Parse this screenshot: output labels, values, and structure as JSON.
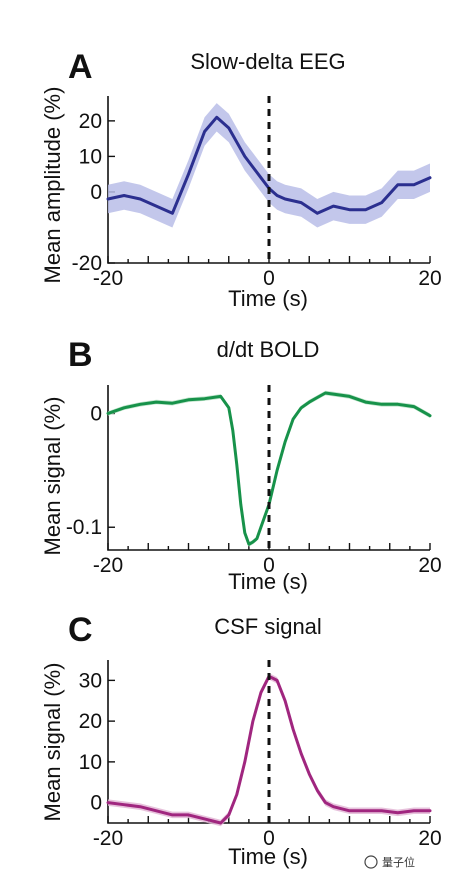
{
  "watermark": "量子位",
  "chart_data": [
    {
      "type": "line",
      "panel_letter": "A",
      "title": "Slow-delta EEG",
      "xlabel": "Time (s)",
      "ylabel": "Mean amplitude (%)",
      "xlim": [
        -20,
        20
      ],
      "ylim": [
        -20,
        27
      ],
      "xticks": [
        -20,
        0,
        20
      ],
      "yticks": [
        20,
        10,
        0,
        -20
      ],
      "ytick_labels": [
        "20",
        "10",
        "0",
        "-20"
      ],
      "vline_x": 0,
      "colors": {
        "line": "#2b2f8f",
        "band": "#b9bde8"
      },
      "x": [
        -20,
        -18,
        -16,
        -14,
        -12,
        -10,
        -8,
        -6.5,
        -5,
        -4,
        -3,
        -2,
        -1,
        0,
        1,
        2,
        4,
        6,
        8,
        10,
        12,
        14,
        16,
        18,
        20
      ],
      "y": [
        -2,
        -1,
        -2,
        -4,
        -6,
        5,
        17,
        21,
        18,
        14,
        10,
        7,
        4,
        1,
        -1,
        -2,
        -3,
        -6,
        -4,
        -5,
        -5,
        -3,
        2,
        2,
        4
      ],
      "band_halfwidth": 4
    },
    {
      "type": "line",
      "panel_letter": "B",
      "title": "d/dt BOLD",
      "xlabel": "Time (s)",
      "ylabel": "Mean signal (%)",
      "xlim": [
        -20,
        20
      ],
      "ylim": [
        -0.12,
        0.025
      ],
      "xticks": [
        -20,
        0,
        20
      ],
      "yticks": [
        0,
        -0.1
      ],
      "ytick_labels": [
        "0",
        "-0.1"
      ],
      "vline_x": 0,
      "colors": {
        "line": "#17924a",
        "band": "#b6e0c3"
      },
      "x": [
        -20,
        -18,
        -16,
        -14,
        -12,
        -10,
        -8,
        -6,
        -5,
        -4.5,
        -4,
        -3.5,
        -3,
        -2.5,
        -2,
        -1.5,
        -1,
        0,
        1,
        2,
        3,
        4,
        5,
        6,
        7,
        8,
        10,
        12,
        14,
        16,
        18,
        20
      ],
      "y": [
        0.0,
        0.005,
        0.008,
        0.01,
        0.009,
        0.012,
        0.013,
        0.015,
        0.005,
        -0.015,
        -0.045,
        -0.08,
        -0.105,
        -0.115,
        -0.113,
        -0.11,
        -0.1,
        -0.08,
        -0.05,
        -0.025,
        -0.005,
        0.005,
        0.01,
        0.014,
        0.018,
        0.017,
        0.015,
        0.01,
        0.008,
        0.008,
        0.006,
        -0.002
      ],
      "band_halfwidth": 0.002
    },
    {
      "type": "line",
      "panel_letter": "C",
      "title": "CSF signal",
      "xlabel": "Time (s)",
      "ylabel": "Mean signal (%)",
      "xlim": [
        -20,
        20
      ],
      "ylim": [
        -5,
        35
      ],
      "xticks": [
        -20,
        0,
        20
      ],
      "yticks": [
        30,
        20,
        10,
        0
      ],
      "ytick_labels": [
        "30",
        "20",
        "10",
        "0"
      ],
      "vline_x": 0,
      "colors": {
        "line": "#a0267f",
        "band": "#e3b7d6"
      },
      "x": [
        -20,
        -18,
        -16,
        -14,
        -12,
        -10,
        -8,
        -6,
        -5,
        -4,
        -3,
        -2,
        -1,
        0,
        1,
        2,
        3,
        4,
        5,
        6,
        7,
        8,
        10,
        12,
        14,
        16,
        18,
        20
      ],
      "y": [
        0,
        -0.5,
        -1,
        -2,
        -3,
        -3,
        -4,
        -5,
        -3,
        2,
        10,
        20,
        27,
        31,
        30,
        25,
        18,
        12,
        7,
        3,
        0,
        -1,
        -2,
        -2,
        -2,
        -2.5,
        -2,
        -2
      ],
      "band_halfwidth": 0.8
    }
  ]
}
